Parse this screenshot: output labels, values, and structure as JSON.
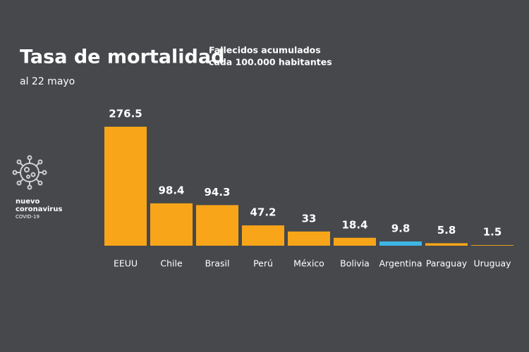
{
  "chart_data": {
    "type": "bar",
    "title": "Tasa de mortalidad",
    "subtitle": [
      "Fallecidos acumulados",
      "cada 100.000 habitantes"
    ],
    "date": "al 22 mayo",
    "categories": [
      "EEUU",
      "Chile",
      "Brasil",
      "Perú",
      "México",
      "Bolivia",
      "Argentina",
      "Paraguay",
      "Uruguay"
    ],
    "values": [
      276.5,
      98.4,
      94.3,
      47.2,
      33,
      18.4,
      9.8,
      5.8,
      1.5
    ],
    "colors": [
      "#f9a51a",
      "#f9a51a",
      "#f9a51a",
      "#f9a51a",
      "#f9a51a",
      "#f9a51a",
      "#3db6e6",
      "#f9a51a",
      "#f9a51a"
    ],
    "logo": [
      "nuevo",
      "coronavirus",
      "COVID-19"
    ]
  }
}
